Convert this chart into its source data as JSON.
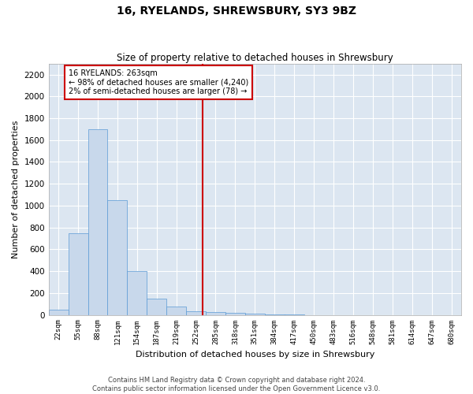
{
  "title": "16, RYELANDS, SHREWSBURY, SY3 9BZ",
  "subtitle": "Size of property relative to detached houses in Shrewsbury",
  "xlabel": "Distribution of detached houses by size in Shrewsbury",
  "ylabel": "Number of detached properties",
  "footer_line1": "Contains HM Land Registry data © Crown copyright and database right 2024.",
  "footer_line2": "Contains public sector information licensed under the Open Government Licence v3.0.",
  "annotation_line1": "16 RYELANDS: 263sqm",
  "annotation_line2": "← 98% of detached houses are smaller (4,240)",
  "annotation_line3": "2% of semi-detached houses are larger (78) →",
  "marker_value": 263,
  "bar_color": "#c8d8eb",
  "bar_edge_color": "#5a9ad5",
  "marker_color": "#cc0000",
  "background_color": "#ffffff",
  "grid_color": "#dce6f1",
  "categories": [
    "22sqm",
    "55sqm",
    "88sqm",
    "121sqm",
    "154sqm",
    "187sqm",
    "219sqm",
    "252sqm",
    "285sqm",
    "318sqm",
    "351sqm",
    "384sqm",
    "417sqm",
    "450sqm",
    "483sqm",
    "516sqm",
    "548sqm",
    "581sqm",
    "614sqm",
    "647sqm",
    "680sqm"
  ],
  "values": [
    50,
    750,
    1700,
    1050,
    400,
    150,
    75,
    30,
    25,
    15,
    10,
    5,
    3,
    0,
    0,
    0,
    0,
    0,
    0,
    0,
    0
  ],
  "ylim": [
    0,
    2300
  ],
  "yticks": [
    0,
    200,
    400,
    600,
    800,
    1000,
    1200,
    1400,
    1600,
    1800,
    2000,
    2200
  ],
  "figsize": [
    6.0,
    5.0
  ],
  "dpi": 100
}
